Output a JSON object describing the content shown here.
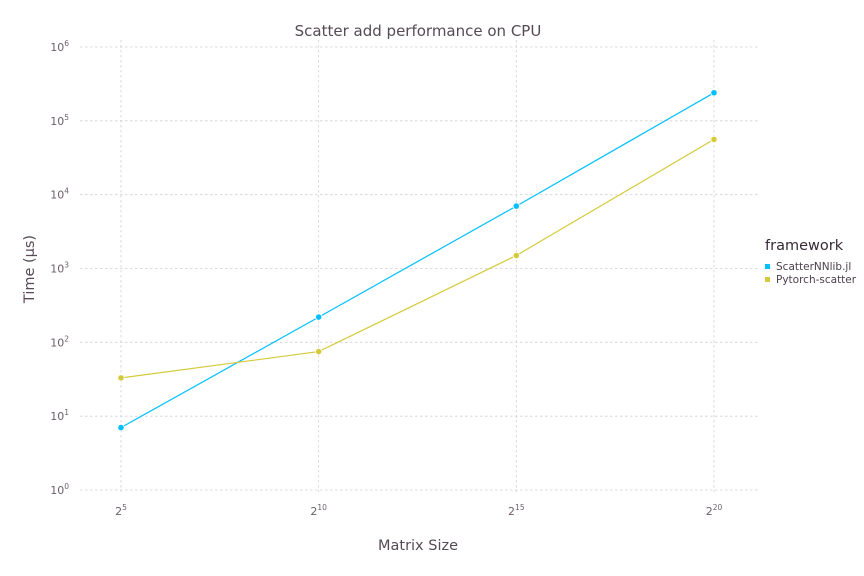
{
  "chart_data": {
    "type": "line",
    "title": "Scatter add performance on CPU",
    "xlabel": "Matrix Size",
    "ylabel": "Time (μs)",
    "x_scale": "log2",
    "y_scale": "log10",
    "x_ticks": [
      {
        "base": "2",
        "exp": "5",
        "value": 32
      },
      {
        "base": "2",
        "exp": "10",
        "value": 1024
      },
      {
        "base": "2",
        "exp": "15",
        "value": 32768
      },
      {
        "base": "2",
        "exp": "20",
        "value": 1048576
      }
    ],
    "y_ticks": [
      {
        "base": "10",
        "exp": "0",
        "value": 1
      },
      {
        "base": "10",
        "exp": "1",
        "value": 10
      },
      {
        "base": "10",
        "exp": "2",
        "value": 100
      },
      {
        "base": "10",
        "exp": "3",
        "value": 1000
      },
      {
        "base": "10",
        "exp": "4",
        "value": 10000
      },
      {
        "base": "10",
        "exp": "5",
        "value": 100000
      },
      {
        "base": "10",
        "exp": "6",
        "value": 1000000
      }
    ],
    "xlim": [
      32,
      1048576
    ],
    "ylim": [
      1,
      1000000
    ],
    "grid": true,
    "legend_title": "framework",
    "legend_position": "right",
    "series": [
      {
        "name": "ScatterNNlib.jl",
        "color": "#00BFFF",
        "x": [
          32,
          1024,
          32768,
          1048576
        ],
        "y": [
          7,
          220,
          7000,
          240000
        ]
      },
      {
        "name": "Pytorch-scatter",
        "color": "#D4CA3A",
        "x": [
          32,
          1024,
          32768,
          1048576
        ],
        "y": [
          33,
          75,
          1500,
          56000
        ]
      }
    ]
  }
}
